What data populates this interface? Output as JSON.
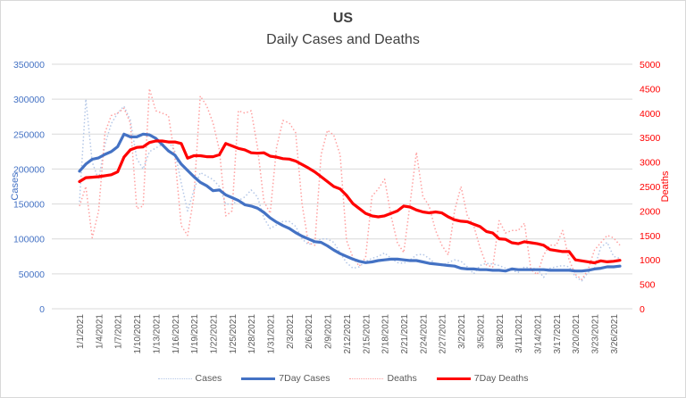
{
  "chart_data": {
    "type": "line",
    "title": "US",
    "subtitle": "Daily Cases and Deaths",
    "ylabel_left": "Cases",
    "ylabel_right": "Deaths",
    "ylim_left": [
      0,
      350000
    ],
    "ylim_right": [
      0,
      5000
    ],
    "yticks_left": [
      "0",
      "50000",
      "100000",
      "150000",
      "200000",
      "250000",
      "300000",
      "350000"
    ],
    "yticks_right": [
      "0",
      "500",
      "1000",
      "1500",
      "2000",
      "2500",
      "3000",
      "3500",
      "4000",
      "4500",
      "5000"
    ],
    "xtick_labels": [
      "1/1/2021",
      "1/4/2021",
      "1/7/2021",
      "1/10/2021",
      "1/13/2021",
      "1/16/2021",
      "1/19/2021",
      "1/22/2021",
      "1/25/2021",
      "1/28/2021",
      "1/31/2021",
      "2/3/2021",
      "2/6/2021",
      "2/9/2021",
      "2/12/2021",
      "2/15/2021",
      "2/18/2021",
      "2/21/2021",
      "2/24/2021",
      "2/27/2021",
      "3/2/2021",
      "3/5/2021",
      "3/8/2021",
      "3/11/2021",
      "3/14/2021",
      "3/17/2021",
      "3/20/2021",
      "3/23/2021",
      "3/26/2021"
    ],
    "grid": true,
    "legend": "bottom",
    "x_start": "1/1/2021",
    "num_days": 86,
    "series": [
      {
        "name": "Cases",
        "axis": "left",
        "style": "dotted",
        "color": "#b4c7e7",
        "values": [
          153000,
          300000,
          210000,
          185000,
          235000,
          265000,
          280000,
          290000,
          270000,
          215000,
          200000,
          225000,
          230000,
          235000,
          240000,
          225000,
          180000,
          140000,
          170000,
          195000,
          190000,
          185000,
          175000,
          150000,
          150000,
          155000,
          160000,
          170000,
          160000,
          130000,
          115000,
          120000,
          125000,
          125000,
          118000,
          100000,
          92000,
          95000,
          100000,
          100000,
          95000,
          80000,
          66000,
          58000,
          60000,
          68000,
          72000,
          75000,
          80000,
          72000,
          66000,
          65000,
          70000,
          77000,
          78000,
          72000,
          64000,
          62000,
          66000,
          70000,
          68000,
          60000,
          50000,
          62000,
          65000,
          64000,
          62000,
          58000,
          55000,
          52000,
          60000,
          58000,
          57000,
          45000,
          58000,
          60000,
          62000,
          60000,
          46000,
          40000,
          52000,
          58000,
          88000,
          95000,
          75000,
          72000
        ]
      },
      {
        "name": "7Day Cases",
        "axis": "left",
        "style": "solid",
        "color": "#4472c4",
        "values": [
          197000,
          207000,
          214000,
          216000,
          221000,
          225000,
          232000,
          250000,
          246000,
          246000,
          250000,
          249000,
          244000,
          235000,
          226000,
          220000,
          207000,
          198000,
          189000,
          181000,
          176000,
          169000,
          170000,
          163000,
          159000,
          155000,
          149000,
          147000,
          144000,
          138000,
          130000,
          124000,
          119000,
          115000,
          109000,
          104000,
          100000,
          96000,
          95000,
          90000,
          84000,
          79000,
          75000,
          71000,
          68000,
          66000,
          67000,
          69000,
          70000,
          71000,
          71000,
          70000,
          69000,
          69000,
          67000,
          65000,
          64000,
          63000,
          62000,
          61000,
          58000,
          57000,
          57000,
          56000,
          56000,
          55000,
          55000,
          54000,
          57000,
          56000,
          56000,
          56000,
          56000,
          56000,
          55000,
          55000,
          55000,
          55000,
          54000,
          54000,
          55000,
          57000,
          58000,
          60000,
          60000,
          61000
        ]
      },
      {
        "name": "Deaths",
        "axis": "right",
        "style": "dotted",
        "color": "#ffa0a0",
        "values": [
          2100,
          2500,
          1450,
          2000,
          3600,
          3950,
          4000,
          4100,
          3800,
          2050,
          2100,
          4500,
          4050,
          4000,
          3950,
          3100,
          1700,
          1500,
          2300,
          4350,
          4150,
          3800,
          3250,
          1900,
          2000,
          4050,
          4000,
          4050,
          3300,
          2200,
          1950,
          3300,
          3850,
          3800,
          3600,
          2150,
          1350,
          1300,
          3150,
          3650,
          3550,
          3150,
          1400,
          1050,
          870,
          1050,
          2300,
          2450,
          2650,
          1900,
          1350,
          1150,
          2150,
          3200,
          2300,
          2100,
          1600,
          1300,
          1100,
          2000,
          2500,
          1900,
          1700,
          1250,
          900,
          850,
          1800,
          1550,
          1600,
          1600,
          1750,
          800,
          700,
          1100,
          1300,
          1300,
          1600,
          1000,
          700,
          600,
          800,
          1200,
          1350,
          1500,
          1450,
          1300
        ]
      },
      {
        "name": "7Day Deaths",
        "axis": "right",
        "style": "solid",
        "color": "#ff0000",
        "values": [
          2600,
          2680,
          2690,
          2700,
          2720,
          2740,
          2800,
          3100,
          3250,
          3300,
          3310,
          3400,
          3430,
          3430,
          3410,
          3410,
          3380,
          3080,
          3130,
          3130,
          3110,
          3110,
          3150,
          3380,
          3330,
          3280,
          3250,
          3190,
          3180,
          3190,
          3120,
          3100,
          3070,
          3060,
          3020,
          2950,
          2880,
          2800,
          2700,
          2600,
          2500,
          2450,
          2320,
          2150,
          2050,
          1950,
          1900,
          1880,
          1900,
          1950,
          2000,
          2100,
          2080,
          2020,
          1980,
          1960,
          1980,
          1960,
          1880,
          1820,
          1790,
          1780,
          1730,
          1680,
          1580,
          1550,
          1430,
          1420,
          1350,
          1330,
          1370,
          1350,
          1330,
          1300,
          1210,
          1190,
          1170,
          1170,
          1000,
          980,
          960,
          940,
          980,
          960,
          970,
          990
        ]
      }
    ]
  },
  "legend_items": [
    "Cases",
    "7Day Cases",
    "Deaths",
    "7Day Deaths"
  ]
}
